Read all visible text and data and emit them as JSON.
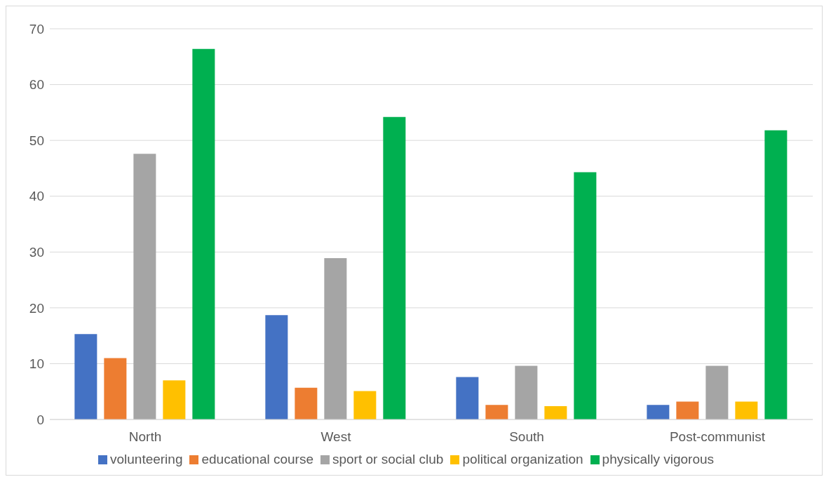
{
  "chart_data": {
    "type": "bar",
    "categories": [
      "North",
      "West",
      "South",
      "Post-communist"
    ],
    "series": [
      {
        "name": "volunteering",
        "color": "#4472c4",
        "values": [
          15.3,
          18.7,
          7.6,
          2.6
        ]
      },
      {
        "name": "educational course",
        "color": "#ed7d31",
        "values": [
          11.0,
          5.7,
          2.6,
          3.2
        ]
      },
      {
        "name": "sport or social club",
        "color": "#a5a5a5",
        "values": [
          47.6,
          28.9,
          9.6,
          9.6
        ]
      },
      {
        "name": "political organization",
        "color": "#ffc000",
        "values": [
          7.0,
          5.1,
          2.4,
          3.2
        ]
      },
      {
        "name": "physically vigorous",
        "color": "#00b050",
        "values": [
          66.4,
          54.2,
          44.3,
          51.8
        ]
      }
    ],
    "ylim": [
      0,
      70
    ],
    "yticks": [
      0,
      10,
      20,
      30,
      40,
      50,
      60,
      70
    ],
    "grid": "y",
    "legend": "bottom"
  }
}
